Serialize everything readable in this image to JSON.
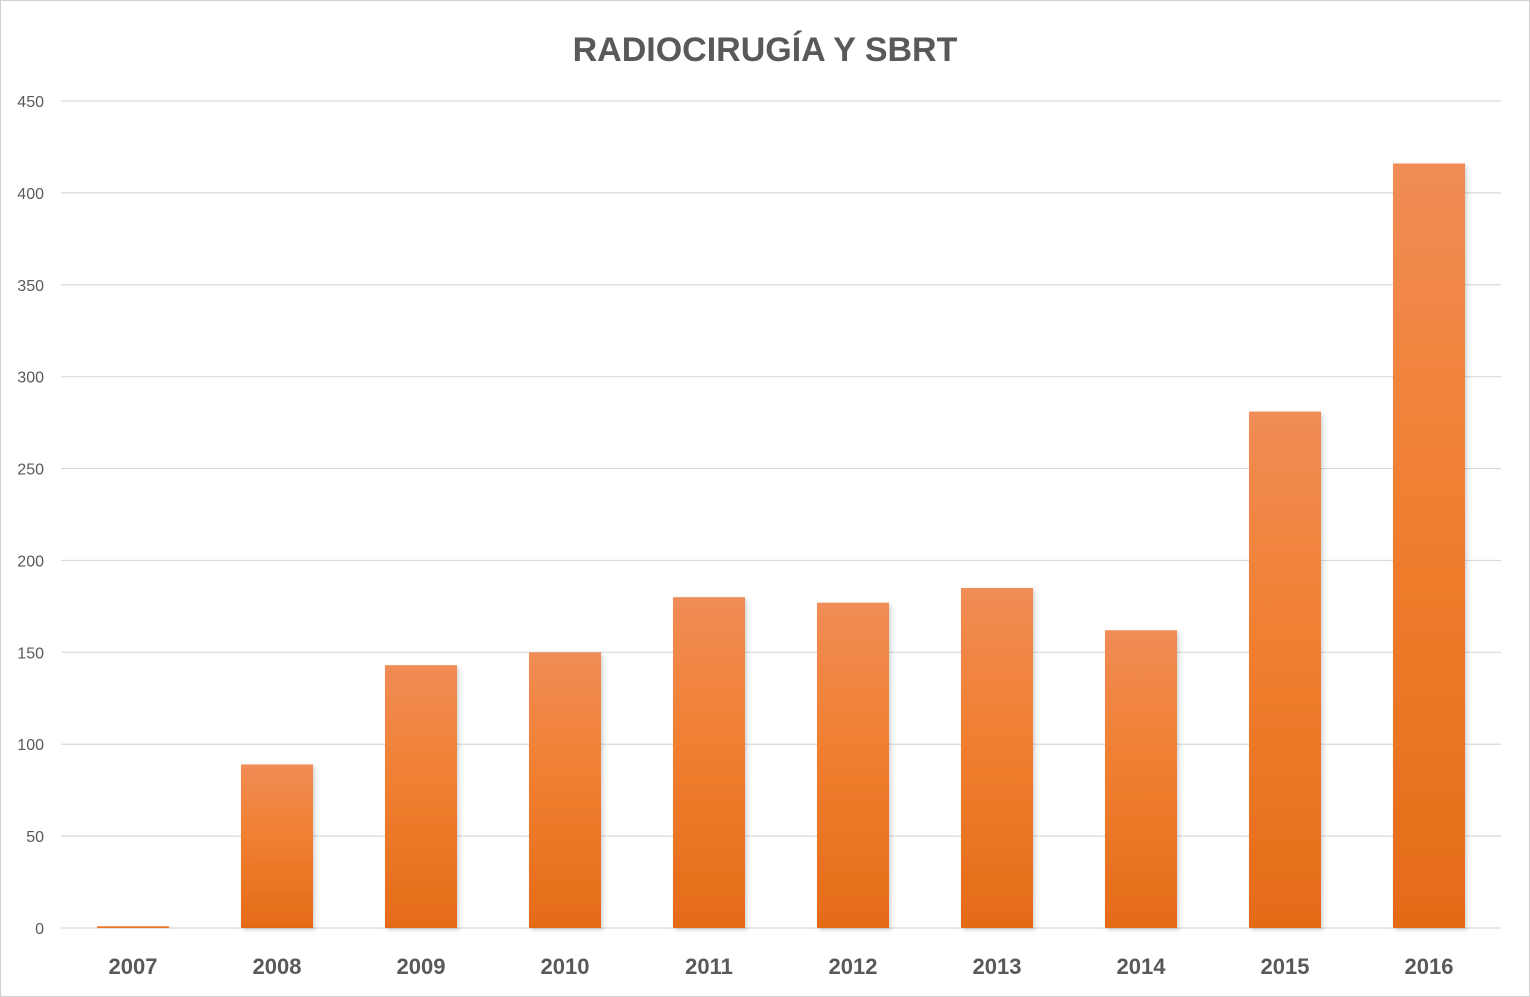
{
  "chart_data": {
    "type": "bar",
    "title": "RADIOCIRUGÍA Y SBRT",
    "xlabel": "",
    "ylabel": "",
    "categories": [
      "2007",
      "2008",
      "2009",
      "2010",
      "2011",
      "2012",
      "2013",
      "2014",
      "2015",
      "2016"
    ],
    "values": [
      1,
      89,
      143,
      150,
      180,
      177,
      185,
      162,
      281,
      416
    ],
    "ylim": [
      0,
      450
    ],
    "yticks": [
      0,
      50,
      100,
      150,
      200,
      250,
      300,
      350,
      400,
      450
    ],
    "grid": true,
    "legend": "none",
    "bar_color_top": "#f08c55",
    "bar_color_bottom": "#e46b18"
  }
}
